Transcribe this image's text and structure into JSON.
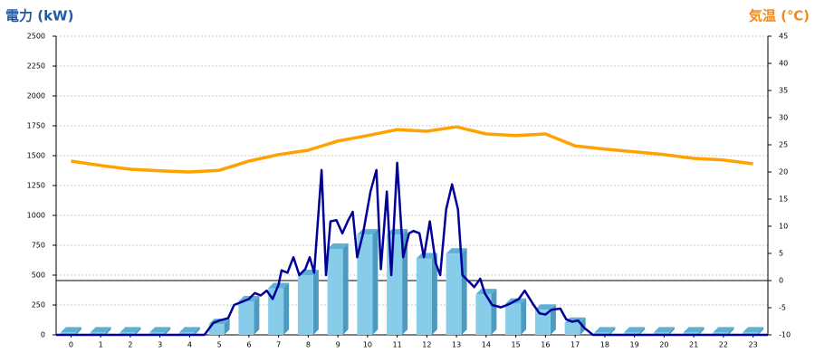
{
  "chart_data": {
    "type": "bar",
    "y_label": "電力 (kW)",
    "y2_label": "気温 (℃)",
    "categories": [
      "0",
      "1",
      "2",
      "3",
      "4",
      "5",
      "6",
      "7",
      "8",
      "9",
      "10",
      "11",
      "12",
      "13",
      "14",
      "15",
      "16",
      "17",
      "18",
      "19",
      "20",
      "21",
      "22",
      "23"
    ],
    "xlim": [
      -0.5,
      23.5
    ],
    "ylim": [
      0,
      2500
    ],
    "yticks": [
      0,
      250,
      500,
      750,
      1000,
      1250,
      1500,
      1750,
      2000,
      2250,
      2500
    ],
    "y2lim": [
      -10,
      45
    ],
    "y2ticks": [
      -10,
      -5,
      0,
      5,
      10,
      15,
      20,
      25,
      30,
      35,
      40,
      45
    ],
    "y2_reference_line": 0,
    "grid": true,
    "series": [
      {
        "type": "bar",
        "color": "#87cdea",
        "values": [
          20,
          20,
          20,
          20,
          20,
          90,
          280,
          390,
          500,
          720,
          840,
          840,
          640,
          680,
          340,
          260,
          210,
          100,
          20,
          20,
          20,
          20,
          20,
          20
        ]
      },
      {
        "type": "line",
        "color": "#000099",
        "x": [
          -0.5,
          4.5,
          4.8,
          5.0,
          5.3,
          5.5,
          5.8,
          6.0,
          6.2,
          6.4,
          6.6,
          6.8,
          7.0,
          7.1,
          7.3,
          7.5,
          7.7,
          7.9,
          8.05,
          8.2,
          8.45,
          8.6,
          8.75,
          8.95,
          9.15,
          9.35,
          9.5,
          9.65,
          9.85,
          10.1,
          10.3,
          10.45,
          10.65,
          10.8,
          11.0,
          11.2,
          11.4,
          11.55,
          11.75,
          11.9,
          12.1,
          12.3,
          12.45,
          12.65,
          12.85,
          13.05,
          13.2,
          13.4,
          13.6,
          13.8,
          13.95,
          14.2,
          14.5,
          14.8,
          15.1,
          15.3,
          15.6,
          15.8,
          16.0,
          16.2,
          16.5,
          16.7,
          16.9,
          17.1,
          17.3,
          17.6,
          23.5
        ],
        "values": [
          0,
          0,
          100,
          120,
          140,
          250,
          280,
          300,
          350,
          330,
          370,
          300,
          420,
          540,
          520,
          650,
          500,
          550,
          650,
          520,
          1380,
          500,
          950,
          960,
          850,
          960,
          1030,
          650,
          850,
          1200,
          1380,
          550,
          1200,
          500,
          1440,
          650,
          850,
          870,
          850,
          650,
          950,
          600,
          500,
          1050,
          1260,
          1050,
          500,
          450,
          400,
          470,
          350,
          250,
          230,
          260,
          300,
          370,
          250,
          180,
          170,
          210,
          220,
          130,
          110,
          120,
          60,
          0,
          0
        ]
      },
      {
        "type": "line",
        "axis": "y2",
        "color": "#ffa200",
        "values": [
          22,
          21.2,
          20.5,
          20.2,
          20,
          20.3,
          22,
          23.2,
          24,
          25.7,
          26.7,
          27.8,
          27.5,
          28.3,
          27,
          26.7,
          27,
          24.8,
          24.2,
          23.7,
          23.2,
          22.5,
          22.2,
          21.5
        ]
      }
    ]
  }
}
